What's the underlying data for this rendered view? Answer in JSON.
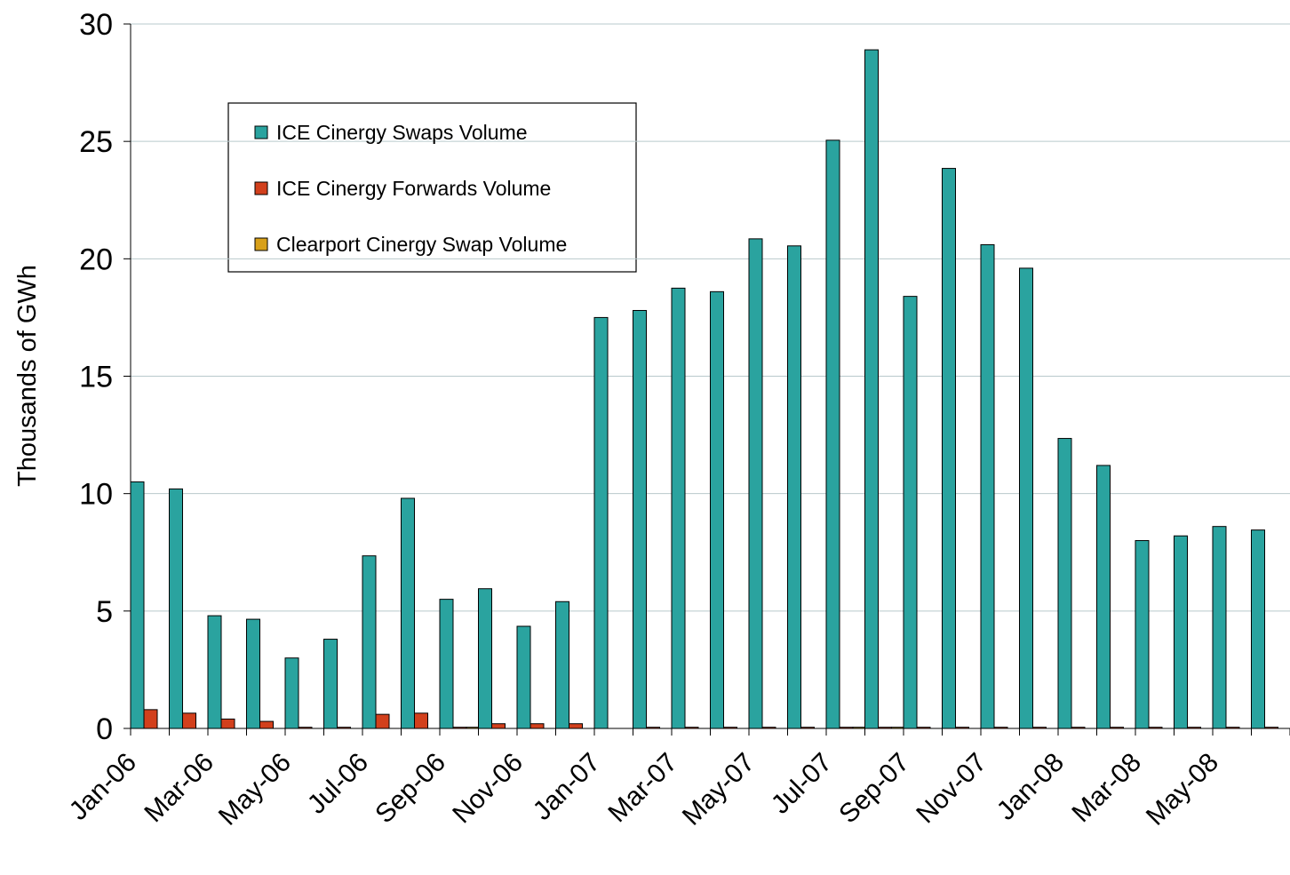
{
  "chart_data": {
    "type": "bar",
    "y_label": "Thousands of GWh",
    "categories": [
      "Jan-06",
      null,
      "Mar-06",
      null,
      "May-06",
      null,
      "Jul-06",
      null,
      "Sep-06",
      null,
      "Nov-06",
      null,
      "Jan-07",
      null,
      "Mar-07",
      null,
      "May-07",
      null,
      "Jul-07",
      null,
      "Sep-07",
      null,
      "Nov-07",
      null,
      "Jan-08",
      null,
      "Mar-08",
      null,
      "May-08",
      null
    ],
    "series": [
      {
        "name": "ICE Cinergy Swaps Volume",
        "color": "#2aa39f",
        "values": [
          10.5,
          10.2,
          4.8,
          4.65,
          3.0,
          3.8,
          7.35,
          9.8,
          5.5,
          5.95,
          4.35,
          5.4,
          17.5,
          17.8,
          18.75,
          18.6,
          20.85,
          20.55,
          25.05,
          28.9,
          18.4,
          23.85,
          20.6,
          19.6,
          12.35,
          11.2,
          8.0,
          8.2,
          8.6,
          8.45
        ]
      },
      {
        "name": "ICE Cinergy Forwards Volume",
        "color": "#d2401c",
        "values": [
          0.8,
          0.65,
          0.4,
          0.3,
          0.05,
          0.05,
          0.6,
          0.65,
          0.05,
          0.2,
          0.2,
          0.2,
          0,
          0.05,
          0.05,
          0.05,
          0.05,
          0.05,
          0.05,
          0.05,
          0.05,
          0.05,
          0.05,
          0.05,
          0.05,
          0.05,
          0.05,
          0.05,
          0.05,
          0.05
        ]
      },
      {
        "name": "Clearport Cinergy Swap Volume",
        "color": "#d8a019",
        "values": [
          0,
          0,
          0,
          0,
          0,
          0,
          0,
          0,
          0.05,
          0,
          0,
          0,
          0,
          0,
          0,
          0,
          0,
          0,
          0.05,
          0.05,
          0,
          0,
          0,
          0,
          0,
          0,
          0,
          0,
          0,
          0
        ]
      }
    ],
    "ylim": [
      0,
      30
    ],
    "yticks": [
      0,
      5,
      10,
      15,
      20,
      25,
      30
    ],
    "grid": true
  }
}
